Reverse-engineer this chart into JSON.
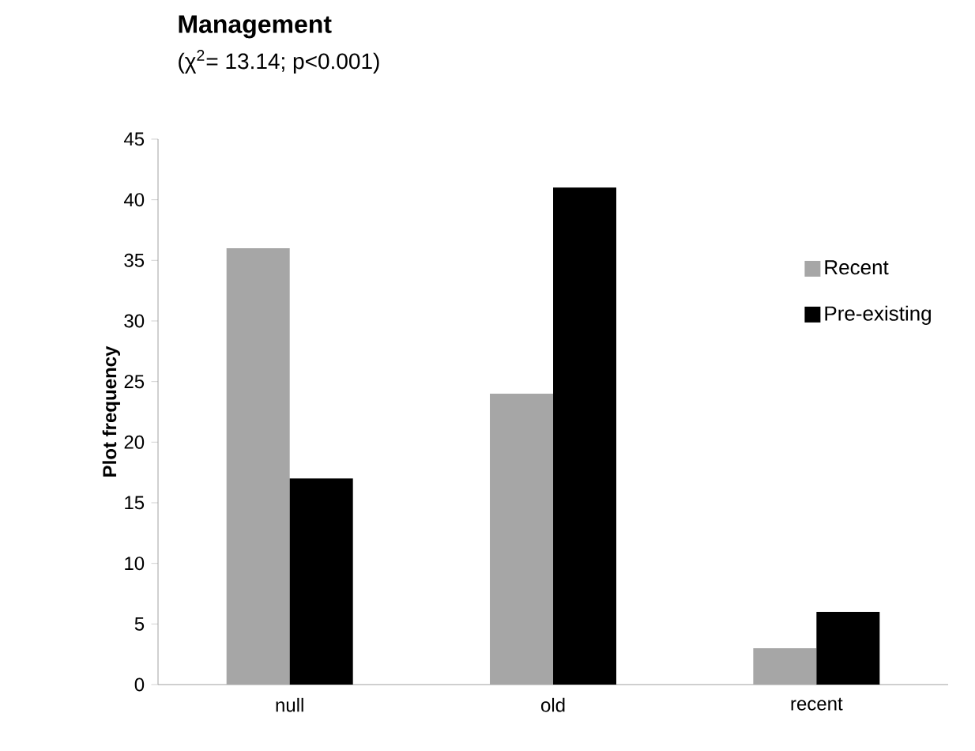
{
  "chart_data": {
    "type": "bar",
    "title": "Management",
    "subtitle": "(χ$^{2}$= 13.14; p<0.001)",
    "ylabel": "Plot frequency",
    "categories": [
      "null",
      "old",
      "recent"
    ],
    "series": [
      {
        "name": "Recent",
        "color": "#a6a6a6",
        "values": [
          36,
          24,
          3
        ]
      },
      {
        "name": "Pre-existing",
        "color": "#000000",
        "values": [
          17,
          41,
          6
        ]
      }
    ],
    "ylim": [
      0,
      45
    ],
    "yticks": [
      0,
      5,
      10,
      15,
      20,
      25,
      30,
      35,
      40,
      45
    ],
    "grid": false,
    "legend": "right"
  }
}
